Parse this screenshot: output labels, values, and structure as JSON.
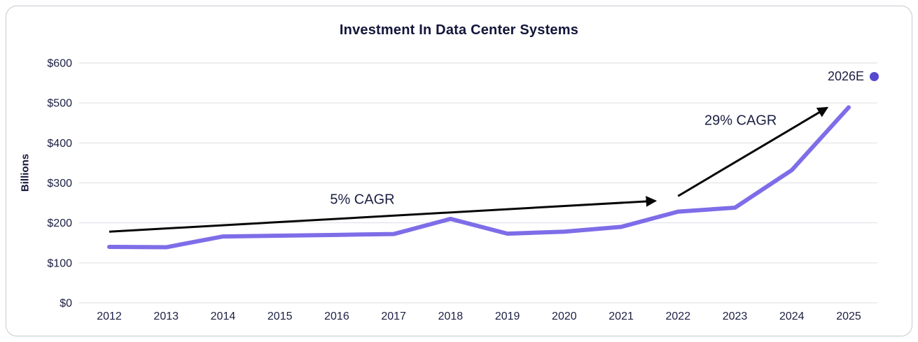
{
  "chart": {
    "title": "Investment In Data Center Systems",
    "y_axis_title": "Billions",
    "legend": {
      "label": "2026E"
    }
  },
  "chart_data": {
    "type": "line",
    "title": "Investment In Data Center Systems",
    "xlabel": "",
    "ylabel": "Billions",
    "categories": [
      "2012",
      "2013",
      "2014",
      "2015",
      "2016",
      "2017",
      "2018",
      "2019",
      "2020",
      "2021",
      "2022",
      "2023",
      "2024",
      "2025"
    ],
    "values": [
      140,
      139,
      166,
      168,
      170,
      172,
      210,
      173,
      178,
      190,
      228,
      238,
      332,
      489
    ],
    "ylim": [
      0,
      600
    ],
    "y_tick_values": [
      0,
      100,
      200,
      300,
      400,
      500,
      600
    ],
    "y_tick_labels": [
      "$0",
      "$100",
      "$200",
      "$300",
      "$400",
      "$500",
      "$600"
    ],
    "grid": true,
    "legend": {
      "label": "2026E",
      "position": "top-right",
      "marker": "dot"
    },
    "line_color": "#7e6de8",
    "legend_dot_color": "#5748d2",
    "grid_color": "#dcdee3",
    "annotation_arrow_color": "#060606",
    "annotations": [
      {
        "text": "5% CAGR",
        "label_x": 2016.45,
        "label_y": 257,
        "arrow": {
          "x1": 2012.0,
          "y1": 178,
          "x2": 2021.6,
          "y2": 255
        }
      },
      {
        "text": "29% CAGR",
        "label_x": 2023.1,
        "label_y": 455,
        "arrow": {
          "x1": 2022.0,
          "y1": 267,
          "x2": 2024.62,
          "y2": 488
        }
      }
    ]
  }
}
